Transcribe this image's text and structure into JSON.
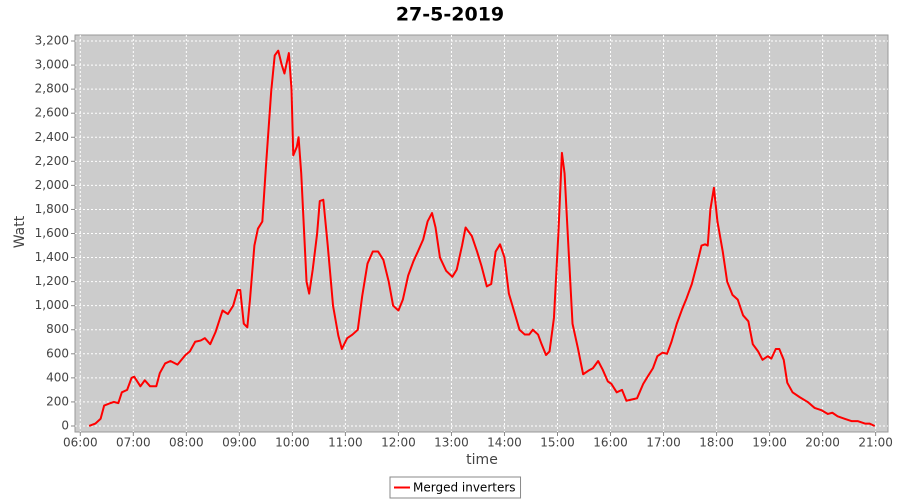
{
  "chart_data": {
    "type": "line",
    "title": "27-5-2019",
    "x_label": "time",
    "y_label": "Watt",
    "x": [
      "06:10",
      "06:17",
      "06:23",
      "06:27",
      "06:34",
      "06:38",
      "06:43",
      "06:47",
      "06:53",
      "06:58",
      "07:01",
      "07:08",
      "07:13",
      "07:19",
      "07:26",
      "07:30",
      "07:36",
      "07:42",
      "07:50",
      "07:59",
      "08:04",
      "08:10",
      "08:16",
      "08:21",
      "08:27",
      "08:33",
      "08:41",
      "08:47",
      "08:53",
      "08:58",
      "09:01",
      "09:05",
      "09:09",
      "09:12",
      "09:17",
      "09:21",
      "09:26",
      "09:30",
      "09:36",
      "09:40",
      "09:44",
      "09:48",
      "09:51",
      "09:56",
      "09:59",
      "10:01",
      "10:05",
      "10:07",
      "10:10",
      "10:16",
      "10:19",
      "10:23",
      "10:28",
      "10:31",
      "10:35",
      "10:40",
      "10:46",
      "10:52",
      "10:56",
      "11:02",
      "11:08",
      "11:14",
      "11:19",
      "11:25",
      "11:31",
      "11:37",
      "11:43",
      "11:49",
      "11:54",
      "12:00",
      "12:05",
      "12:11",
      "12:17",
      "12:22",
      "12:28",
      "12:33",
      "12:38",
      "12:42",
      "12:47",
      "12:54",
      "13:01",
      "13:06",
      "13:12",
      "13:16",
      "13:23",
      "13:29",
      "13:34",
      "13:40",
      "13:45",
      "13:50",
      "13:55",
      "14:00",
      "14:05",
      "14:11",
      "14:17",
      "14:23",
      "14:28",
      "14:32",
      "14:38",
      "14:42",
      "14:47",
      "14:51",
      "14:56",
      "15:01",
      "15:05",
      "15:08",
      "15:13",
      "15:17",
      "15:23",
      "15:29",
      "15:35",
      "15:40",
      "15:46",
      "15:51",
      "15:57",
      "16:01",
      "16:07",
      "16:13",
      "16:18",
      "16:24",
      "16:30",
      "16:37",
      "16:42",
      "16:48",
      "16:53",
      "16:59",
      "17:04",
      "17:09",
      "17:15",
      "17:21",
      "17:26",
      "17:32",
      "17:38",
      "17:43",
      "17:47",
      "17:50",
      "17:53",
      "17:57",
      "18:01",
      "18:07",
      "18:12",
      "18:18",
      "18:24",
      "18:30",
      "18:36",
      "18:41",
      "18:47",
      "18:52",
      "18:58",
      "19:02",
      "19:07",
      "19:11",
      "19:16",
      "19:20",
      "19:26",
      "19:34",
      "19:43",
      "19:51",
      "19:59",
      "20:06",
      "20:11",
      "20:17",
      "20:25",
      "20:33",
      "20:40",
      "20:48",
      "20:53",
      "20:59"
    ],
    "series": [
      {
        "name": "Merged inverters",
        "color": "#ff0000",
        "values": [
          0,
          20,
          60,
          170,
          190,
          200,
          190,
          280,
          300,
          400,
          410,
          330,
          380,
          330,
          330,
          440,
          520,
          540,
          510,
          590,
          620,
          700,
          710,
          730,
          680,
          780,
          960,
          930,
          1000,
          1130,
          1130,
          850,
          820,
          1050,
          1500,
          1640,
          1700,
          2150,
          2780,
          3080,
          3120,
          3000,
          2930,
          3100,
          2800,
          2250,
          2320,
          2400,
          2100,
          1200,
          1100,
          1300,
          1600,
          1870,
          1880,
          1500,
          1000,
          750,
          640,
          730,
          760,
          800,
          1080,
          1350,
          1450,
          1450,
          1380,
          1200,
          1000,
          960,
          1050,
          1250,
          1370,
          1450,
          1550,
          1700,
          1770,
          1650,
          1400,
          1290,
          1240,
          1300,
          1500,
          1650,
          1580,
          1450,
          1330,
          1160,
          1180,
          1450,
          1510,
          1400,
          1100,
          950,
          800,
          760,
          760,
          800,
          760,
          680,
          590,
          620,
          900,
          1600,
          2270,
          2100,
          1400,
          850,
          650,
          430,
          460,
          480,
          540,
          470,
          370,
          350,
          280,
          300,
          210,
          220,
          230,
          350,
          410,
          480,
          580,
          610,
          600,
          700,
          850,
          970,
          1060,
          1180,
          1350,
          1500,
          1510,
          1500,
          1800,
          1980,
          1700,
          1450,
          1200,
          1090,
          1050,
          920,
          870,
          680,
          620,
          550,
          580,
          560,
          640,
          640,
          550,
          360,
          280,
          240,
          200,
          150,
          130,
          100,
          110,
          80,
          60,
          40,
          40,
          20,
          20,
          0
        ]
      }
    ],
    "xlim": [
      "05:54",
      "21:14"
    ],
    "xticks": [
      "06:00",
      "07:00",
      "08:00",
      "09:00",
      "10:00",
      "11:00",
      "12:00",
      "13:00",
      "14:00",
      "15:00",
      "16:00",
      "17:00",
      "18:00",
      "19:00",
      "20:00",
      "21:00"
    ],
    "ylim": [
      -50,
      3250
    ],
    "yticks": [
      0,
      200,
      400,
      600,
      800,
      {
        "value": 1000,
        "label": "1,000"
      },
      {
        "value": 1200,
        "label": "1,200"
      },
      {
        "value": 1400,
        "label": "1,400"
      },
      {
        "value": 1600,
        "label": "1,600"
      },
      {
        "value": 1800,
        "label": "1,800"
      },
      {
        "value": 2000,
        "label": "2,000"
      },
      {
        "value": 2200,
        "label": "2,200"
      },
      {
        "value": 2400,
        "label": "2,400"
      },
      {
        "value": 2600,
        "label": "2,600"
      },
      {
        "value": 2800,
        "label": "2,800"
      },
      {
        "value": 3000,
        "label": "3,000"
      },
      {
        "value": 3200,
        "label": "3,200"
      }
    ],
    "grid": true,
    "legend": "bottom"
  }
}
